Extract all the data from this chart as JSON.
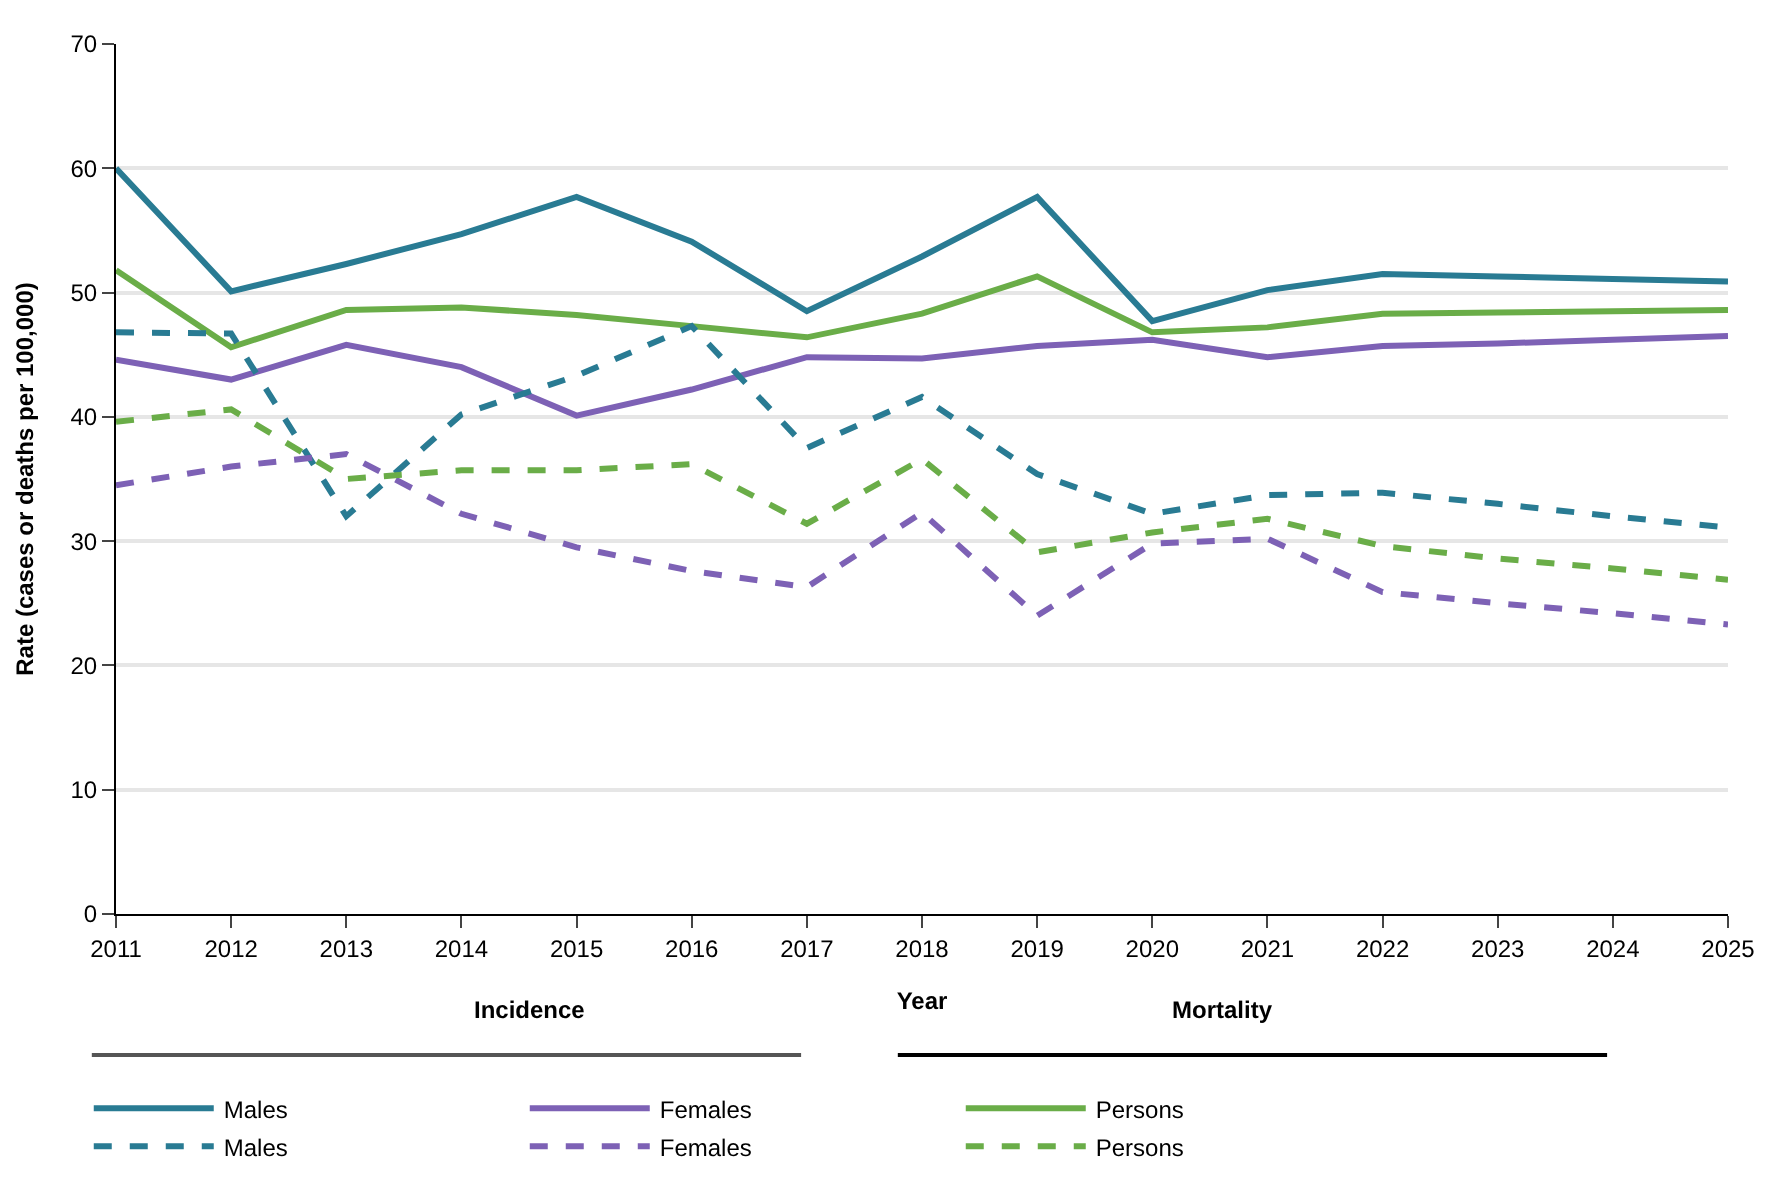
{
  "chart_data": {
    "type": "line",
    "xlabel": "Year",
    "ylabel": "Rate (cases or deaths per 100,000)",
    "x": [
      2011,
      2012,
      2013,
      2014,
      2015,
      2016,
      2017,
      2018,
      2019,
      2020,
      2021,
      2022,
      2023,
      2024,
      2025
    ],
    "xlim": [
      2011,
      2025
    ],
    "xticks": [
      2011,
      2012,
      2013,
      2014,
      2015,
      2016,
      2017,
      2018,
      2019,
      2020,
      2021,
      2022,
      2023,
      2024,
      2025
    ],
    "ylim": [
      0,
      70
    ],
    "yticks": [
      0,
      10,
      20,
      30,
      40,
      50,
      60,
      70
    ],
    "grid": "y",
    "legend": "bottom",
    "marker": "none",
    "annotations": [
      "Incidence",
      "Mortality"
    ],
    "series": [
      {
        "name": "Males",
        "color": "#297b93",
        "line_style": "solid",
        "values": [
          60.0,
          50.1,
          52.3,
          54.7,
          57.7,
          54.1,
          48.5,
          52.9,
          57.7,
          47.7,
          50.2,
          51.5,
          51.3,
          51.1,
          50.9
        ]
      },
      {
        "name": "Females",
        "color": "#7d61b5",
        "line_style": "solid",
        "values": [
          44.6,
          43.0,
          45.8,
          44.0,
          40.1,
          42.2,
          44.8,
          44.7,
          45.7,
          46.2,
          44.8,
          45.7,
          45.9,
          46.2,
          46.5
        ]
      },
      {
        "name": "Persons",
        "color": "#6aad48",
        "line_style": "solid",
        "values": [
          51.8,
          45.6,
          48.6,
          48.8,
          48.2,
          47.3,
          46.4,
          48.3,
          51.3,
          46.8,
          47.2,
          48.3,
          48.4,
          48.5,
          48.6
        ]
      },
      {
        "name": "Males",
        "color": "#297b93",
        "line_style": "dashed",
        "values": [
          46.8,
          46.7,
          32.0,
          40.2,
          43.3,
          47.3,
          37.5,
          41.6,
          35.4,
          32.2,
          33.7,
          33.9,
          33.0,
          32.0,
          31.1
        ]
      },
      {
        "name": "Females",
        "color": "#7d61b5",
        "line_style": "dashed",
        "values": [
          34.5,
          36.0,
          37.0,
          32.2,
          29.5,
          27.6,
          26.3,
          32.3,
          24.0,
          29.8,
          30.2,
          25.9,
          25.0,
          24.2,
          23.3
        ]
      },
      {
        "name": "Persons",
        "color": "#6aad48",
        "line_style": "dashed",
        "values": [
          39.6,
          40.6,
          35.0,
          35.7,
          35.7,
          36.2,
          31.4,
          36.6,
          29.1,
          30.7,
          31.8,
          29.6,
          28.6,
          27.8,
          26.9
        ]
      }
    ]
  }
}
